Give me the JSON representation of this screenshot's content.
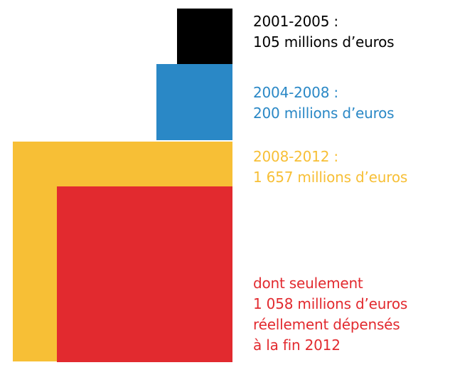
{
  "chart_data": {
    "type": "area",
    "title": "",
    "anchor": "right-top",
    "series": [
      {
        "period": "2001-2005 :",
        "amount_text": "105 millions d’euros",
        "value": 105,
        "unit": "millions d’euros",
        "color": "#000000"
      },
      {
        "period": "2004-2008 :",
        "amount_text": "200 millions d’euros",
        "value": 200,
        "unit": "millions d’euros",
        "color": "#2a88c6"
      },
      {
        "period": "2008-2012 :",
        "amount_text": "1 657 millions d’euros",
        "value": 1657,
        "unit": "millions d’euros",
        "color": "#f7bf36"
      },
      {
        "lines": [
          "dont seulement",
          "1 058 millions d’euros",
          "réellement dépensés",
          "à la fin 2012"
        ],
        "value": 1058,
        "unit": "millions d’euros",
        "color": "#e22a2f"
      }
    ]
  }
}
